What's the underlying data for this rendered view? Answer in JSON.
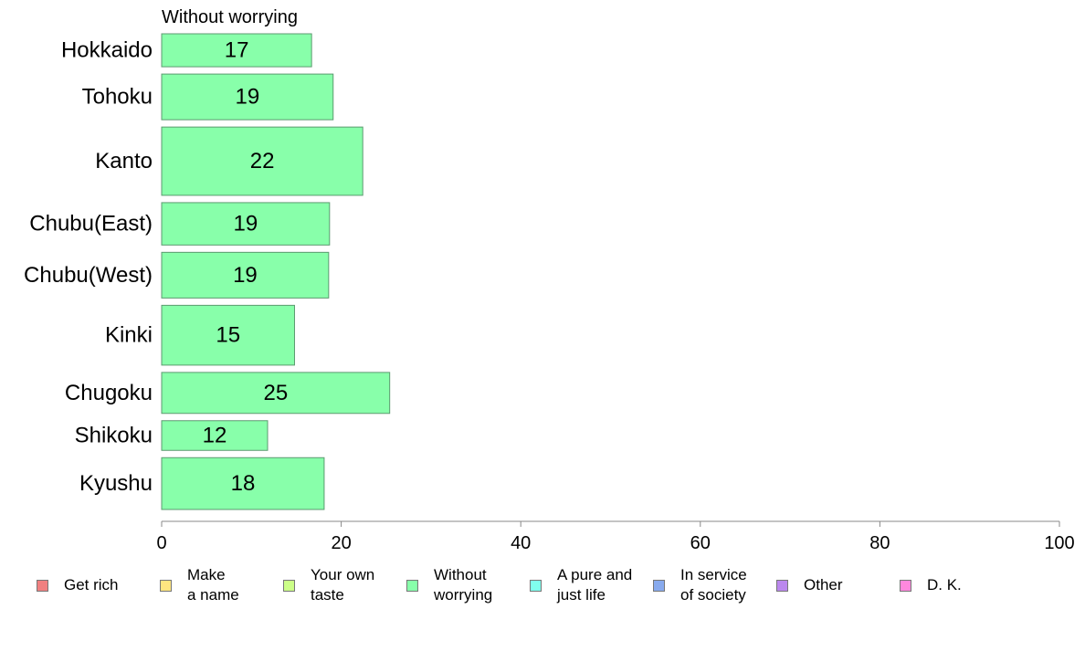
{
  "chart_data": {
    "type": "bar",
    "orientation": "horizontal",
    "title": "Without worrying",
    "xlabel": "",
    "ylabel": "",
    "xlim": [
      0,
      100
    ],
    "x_ticks": [
      0,
      20,
      40,
      60,
      80,
      100
    ],
    "grid": false,
    "bar_color": "#88ffaa",
    "categories": [
      "Hokkaido",
      "Tohoku",
      "Kanto",
      "Chubu(East)",
      "Chubu(West)",
      "Kinki",
      "Chugoku",
      "Shikoku",
      "Kyushu"
    ],
    "values": [
      17,
      19,
      22,
      19,
      19,
      15,
      25,
      12,
      18
    ],
    "bar_value_positions": [
      16.7,
      19.1,
      22.4,
      18.7,
      18.6,
      14.8,
      25.4,
      11.8,
      18.1
    ],
    "relative_bar_thickness": [
      0.7,
      0.97,
      1.45,
      0.9,
      0.97,
      1.27,
      0.87,
      0.63,
      1.1
    ],
    "legend_placement": "bottom",
    "legend": [
      {
        "label": "Get rich",
        "color": "#f08080"
      },
      {
        "label": "Make\na name",
        "color": "#ffe680"
      },
      {
        "label": "Your own\ntaste",
        "color": "#ccff88"
      },
      {
        "label": "Without\nworrying",
        "color": "#88ffaa"
      },
      {
        "label": "A pure and\njust life",
        "color": "#80ffee"
      },
      {
        "label": "In service\nof society",
        "color": "#88aaee"
      },
      {
        "label": "Other",
        "color": "#bb88ee"
      },
      {
        "label": "D. K.",
        "color": "#ff88dd"
      }
    ]
  }
}
